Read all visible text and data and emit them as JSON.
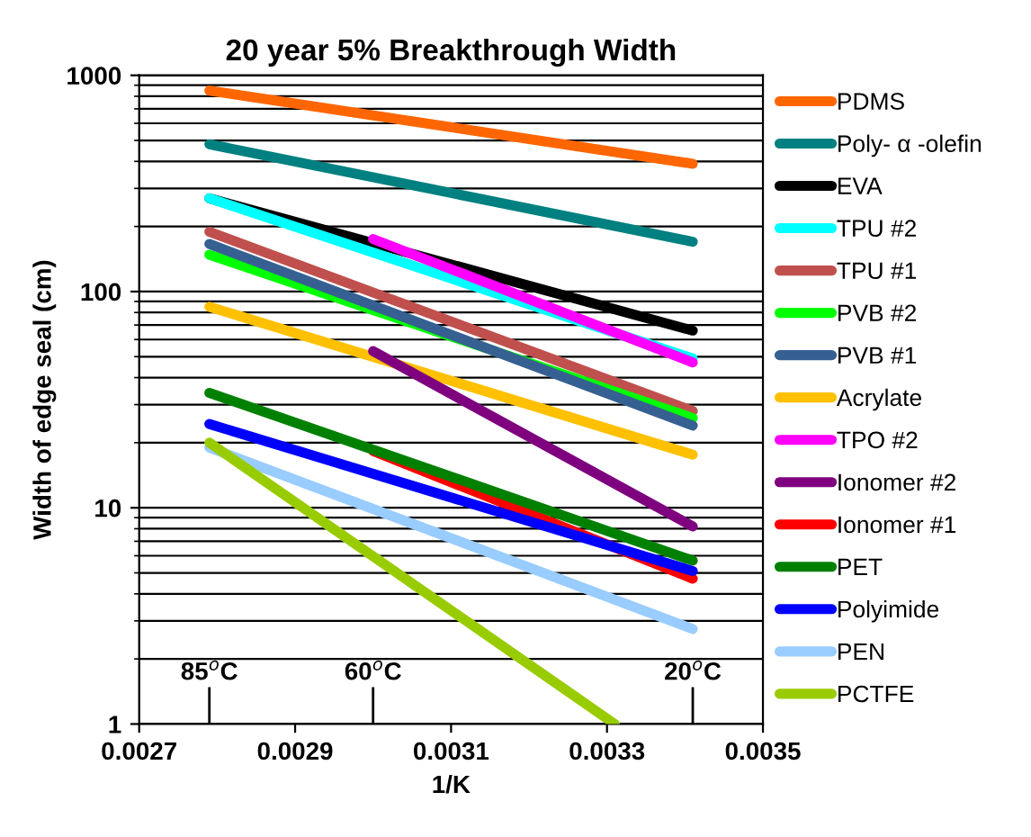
{
  "chart_data": {
    "type": "line",
    "title": "20 year 5% Breakthrough Width",
    "xlabel": "1/K",
    "ylabel": "Width of edge seal (cm)",
    "log": "y",
    "xlim": [
      0.0027,
      0.0035
    ],
    "xticks": [
      0.0027,
      0.0029,
      0.0031,
      0.0033,
      0.0035
    ],
    "ylim": [
      1,
      1000
    ],
    "yticks": [
      1,
      10,
      100,
      1000
    ],
    "grid": "y",
    "legend": "right",
    "marker": "none",
    "line_style": "solid",
    "ref_lines": [
      {
        "axis": "x",
        "value": 0.00279,
        "label": "85$^{o}$C"
      },
      {
        "axis": "x",
        "value": 0.003,
        "label": "60$^{o}$C"
      },
      {
        "axis": "x",
        "value": 0.00341,
        "label": "20$^{o}$C"
      }
    ],
    "series": [
      {
        "name": "PDMS",
        "color": "#ff6600",
        "x": [
          0.00279,
          0.00341
        ],
        "values": [
          850,
          390
        ]
      },
      {
        "name": "Poly- α -olefin",
        "color": "#008080",
        "x": [
          0.00279,
          0.00341
        ],
        "values": [
          480,
          170
        ]
      },
      {
        "name": "EVA",
        "color": "#000000",
        "x": [
          0.00279,
          0.00341
        ],
        "values": [
          270,
          66
        ]
      },
      {
        "name": "TPU #2",
        "color": "#00ffff",
        "x": [
          0.00279,
          0.00341
        ],
        "values": [
          270,
          49
        ]
      },
      {
        "name": "TPU #1",
        "color": "#c0504d",
        "x": [
          0.00279,
          0.00341
        ],
        "values": [
          189,
          28
        ]
      },
      {
        "name": "PVB #2",
        "color": "#00ff00",
        "x": [
          0.00279,
          0.00341
        ],
        "values": [
          148,
          26
        ]
      },
      {
        "name": "PVB #1",
        "color": "#366092",
        "x": [
          0.00279,
          0.00341
        ],
        "values": [
          166,
          24
        ]
      },
      {
        "name": "Acrylate",
        "color": "#ffc000",
        "x": [
          0.00279,
          0.00341
        ],
        "values": [
          85,
          17.6
        ]
      },
      {
        "name": "TPO #2",
        "color": "#ff00ff",
        "x": [
          0.003,
          0.00341
        ],
        "values": [
          175,
          47
        ]
      },
      {
        "name": "Ionomer #2",
        "color": "#7f007f",
        "x": [
          0.003,
          0.00341
        ],
        "values": [
          53,
          8.2
        ]
      },
      {
        "name": "Ionomer #1",
        "color": "#ff0000",
        "x": [
          0.003,
          0.00341
        ],
        "values": [
          18.3,
          4.7
        ]
      },
      {
        "name": "PET",
        "color": "#008000",
        "x": [
          0.00279,
          0.00341
        ],
        "values": [
          34,
          5.7
        ]
      },
      {
        "name": "Polyimide",
        "color": "#0000ff",
        "x": [
          0.00279,
          0.00341
        ],
        "values": [
          24.4,
          5.1
        ]
      },
      {
        "name": "PEN",
        "color": "#99ccff",
        "x": [
          0.00279,
          0.00341
        ],
        "values": [
          19,
          2.75
        ]
      },
      {
        "name": "PCTFE",
        "color": "#99cc00",
        "x": [
          0.00279,
          0.00331
        ],
        "values": [
          20,
          1
        ]
      }
    ]
  }
}
